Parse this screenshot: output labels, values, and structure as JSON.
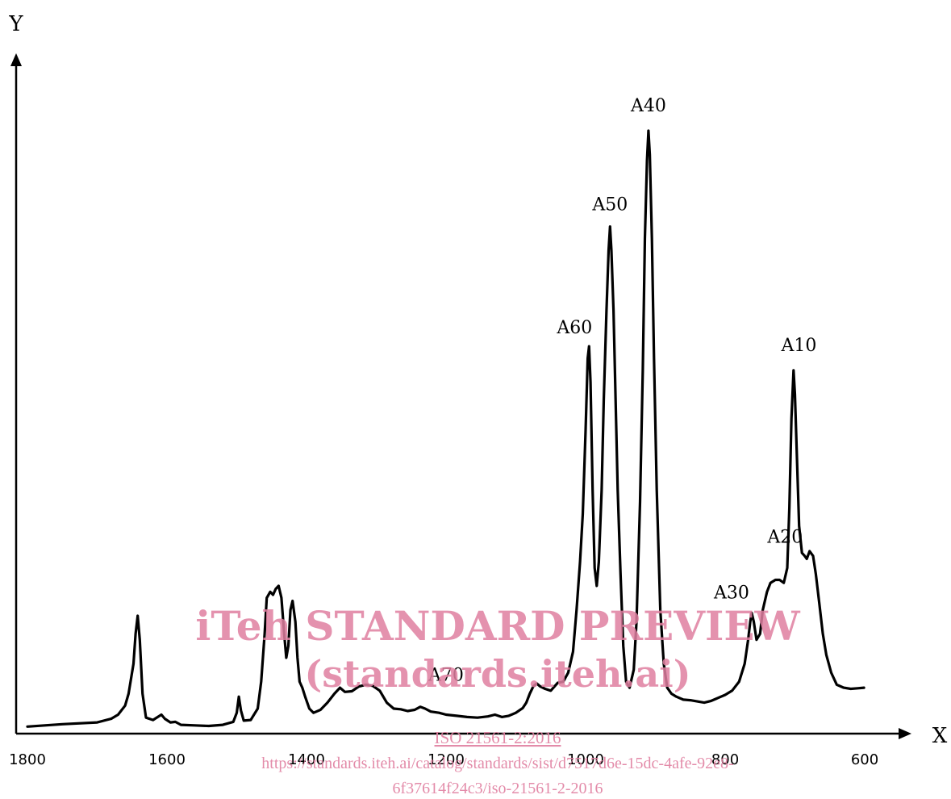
{
  "chart_data": {
    "type": "line",
    "xlabel": "X",
    "ylabel": "Y",
    "xlim": [
      1800,
      600
    ],
    "ylim": [
      0,
      100
    ],
    "x_reversed": true,
    "x_ticks": [
      "1800",
      "1600",
      "1400",
      "1200",
      "1000",
      "800",
      "600"
    ],
    "grid": false,
    "series": [
      {
        "line_color": "#000000",
        "points": [
          [
            1800,
            0.5
          ],
          [
            1750,
            0.9
          ],
          [
            1700,
            1.2
          ],
          [
            1680,
            1.8
          ],
          [
            1670,
            2.5
          ],
          [
            1660,
            4.0
          ],
          [
            1655,
            6.0
          ],
          [
            1648,
            11.0
          ],
          [
            1645,
            16.0
          ],
          [
            1642,
            19.0
          ],
          [
            1639,
            15.0
          ],
          [
            1635,
            6.0
          ],
          [
            1630,
            2.0
          ],
          [
            1620,
            1.6
          ],
          [
            1608,
            2.5
          ],
          [
            1603,
            1.8
          ],
          [
            1595,
            1.2
          ],
          [
            1588,
            1.3
          ],
          [
            1580,
            0.8
          ],
          [
            1560,
            0.7
          ],
          [
            1540,
            0.6
          ],
          [
            1520,
            0.8
          ],
          [
            1505,
            1.3
          ],
          [
            1500,
            2.8
          ],
          [
            1497,
            5.5
          ],
          [
            1494,
            3.2
          ],
          [
            1490,
            1.5
          ],
          [
            1480,
            1.6
          ],
          [
            1470,
            3.5
          ],
          [
            1465,
            8.0
          ],
          [
            1460,
            16.0
          ],
          [
            1457,
            22.0
          ],
          [
            1452,
            23.0
          ],
          [
            1448,
            22.5
          ],
          [
            1444,
            23.5
          ],
          [
            1440,
            24.0
          ],
          [
            1436,
            22.0
          ],
          [
            1432,
            16.0
          ],
          [
            1429,
            12.0
          ],
          [
            1426,
            14.0
          ],
          [
            1423,
            20.0
          ],
          [
            1420,
            21.5
          ],
          [
            1416,
            18.0
          ],
          [
            1413,
            12.0
          ],
          [
            1410,
            8.0
          ],
          [
            1406,
            7.0
          ],
          [
            1402,
            5.5
          ],
          [
            1396,
            3.5
          ],
          [
            1390,
            2.8
          ],
          [
            1380,
            3.3
          ],
          [
            1370,
            4.5
          ],
          [
            1360,
            6.0
          ],
          [
            1352,
            7.0
          ],
          [
            1345,
            6.3
          ],
          [
            1335,
            6.4
          ],
          [
            1325,
            7.2
          ],
          [
            1315,
            7.5
          ],
          [
            1305,
            7.3
          ],
          [
            1295,
            6.5
          ],
          [
            1285,
            4.5
          ],
          [
            1275,
            3.5
          ],
          [
            1265,
            3.4
          ],
          [
            1255,
            3.1
          ],
          [
            1245,
            3.3
          ],
          [
            1237,
            3.8
          ],
          [
            1230,
            3.5
          ],
          [
            1222,
            3.0
          ],
          [
            1210,
            2.8
          ],
          [
            1200,
            2.5
          ],
          [
            1185,
            2.3
          ],
          [
            1170,
            2.1
          ],
          [
            1155,
            2.0
          ],
          [
            1140,
            2.2
          ],
          [
            1130,
            2.5
          ],
          [
            1120,
            2.1
          ],
          [
            1110,
            2.3
          ],
          [
            1100,
            2.8
          ],
          [
            1090,
            3.6
          ],
          [
            1085,
            4.5
          ],
          [
            1080,
            6.0
          ],
          [
            1075,
            7.2
          ],
          [
            1070,
            7.7
          ],
          [
            1065,
            7.2
          ],
          [
            1058,
            6.8
          ],
          [
            1050,
            6.5
          ],
          [
            1040,
            7.8
          ],
          [
            1032,
            8.0
          ],
          [
            1025,
            9.5
          ],
          [
            1018,
            13.0
          ],
          [
            1013,
            20.0
          ],
          [
            1008,
            28.0
          ],
          [
            1004,
            36.0
          ],
          [
            1000,
            50.0
          ],
          [
            997,
            62.0
          ],
          [
            995,
            64.0
          ],
          [
            993,
            58.0
          ],
          [
            990,
            40.0
          ],
          [
            987,
            27.0
          ],
          [
            984,
            24.0
          ],
          [
            981,
            28.0
          ],
          [
            977,
            40.0
          ],
          [
            974,
            55.0
          ],
          [
            970,
            70.0
          ],
          [
            967,
            80.0
          ],
          [
            965,
            84.0
          ],
          [
            963,
            80.0
          ],
          [
            960,
            70.0
          ],
          [
            957,
            55.0
          ],
          [
            954,
            40.0
          ],
          [
            950,
            26.0
          ],
          [
            946,
            14.0
          ],
          [
            942,
            8.0
          ],
          [
            937,
            7.0
          ],
          [
            931,
            10.0
          ],
          [
            927,
            18.0
          ],
          [
            922,
            38.0
          ],
          [
            918,
            60.0
          ],
          [
            915,
            82.0
          ],
          [
            912,
            95.0
          ],
          [
            910,
            100.0
          ],
          [
            908,
            96.0
          ],
          [
            905,
            82.0
          ],
          [
            902,
            62.0
          ],
          [
            898,
            40.0
          ],
          [
            893,
            20.0
          ],
          [
            888,
            11.0
          ],
          [
            883,
            7.0
          ],
          [
            877,
            6.0
          ],
          [
            870,
            5.5
          ],
          [
            860,
            5.0
          ],
          [
            850,
            4.9
          ],
          [
            840,
            4.7
          ],
          [
            830,
            4.5
          ],
          [
            820,
            4.8
          ],
          [
            810,
            5.3
          ],
          [
            800,
            5.8
          ],
          [
            790,
            6.5
          ],
          [
            780,
            8.0
          ],
          [
            772,
            11.0
          ],
          [
            767,
            15.0
          ],
          [
            764,
            18.0
          ],
          [
            762,
            19.5
          ],
          [
            759,
            18.0
          ],
          [
            755,
            15.0
          ],
          [
            750,
            16.0
          ],
          [
            746,
            20.0
          ],
          [
            740,
            23.0
          ],
          [
            735,
            24.5
          ],
          [
            728,
            25.0
          ],
          [
            722,
            25.0
          ],
          [
            716,
            24.5
          ],
          [
            711,
            27.0
          ],
          [
            708,
            37.0
          ],
          [
            705,
            52.0
          ],
          [
            702,
            60.0
          ],
          [
            700,
            56.0
          ],
          [
            697,
            45.0
          ],
          [
            694,
            34.0
          ],
          [
            690,
            29.5
          ],
          [
            686,
            29.0
          ],
          [
            683,
            28.5
          ],
          [
            679,
            29.8
          ],
          [
            674,
            29.0
          ],
          [
            670,
            26.0
          ],
          [
            665,
            21.0
          ],
          [
            660,
            16.0
          ],
          [
            655,
            12.5
          ],
          [
            648,
            9.5
          ],
          [
            640,
            7.5
          ],
          [
            630,
            7.0
          ],
          [
            620,
            6.8
          ],
          [
            610,
            6.9
          ],
          [
            601,
            7.0
          ]
        ]
      }
    ],
    "annotations": [
      {
        "label": "A10",
        "x": 700,
        "y": 60
      },
      {
        "label": "A20",
        "x": 728,
        "y": 25
      },
      {
        "label": "A30",
        "x": 762,
        "y": 19.5
      },
      {
        "label": "A40",
        "x": 910,
        "y": 100
      },
      {
        "label": "A50",
        "x": 965,
        "y": 84
      },
      {
        "label": "A60",
        "x": 995,
        "y": 64
      },
      {
        "label": "A70",
        "x": 1200,
        "y": 2.5
      }
    ]
  },
  "watermark": {
    "line1": "iTeh STANDARD PREVIEW",
    "line2": "(standards.iteh.ai)",
    "doc_ref": "ISO 21561-2:2016",
    "url_line1": "https://standards.iteh.ai/catalog/standards/sist/d7517d6e-15dc-4afe-92e8-",
    "url_line2": "6f37614f24c3/iso-21561-2-2016",
    "color": "#e07fa0"
  }
}
